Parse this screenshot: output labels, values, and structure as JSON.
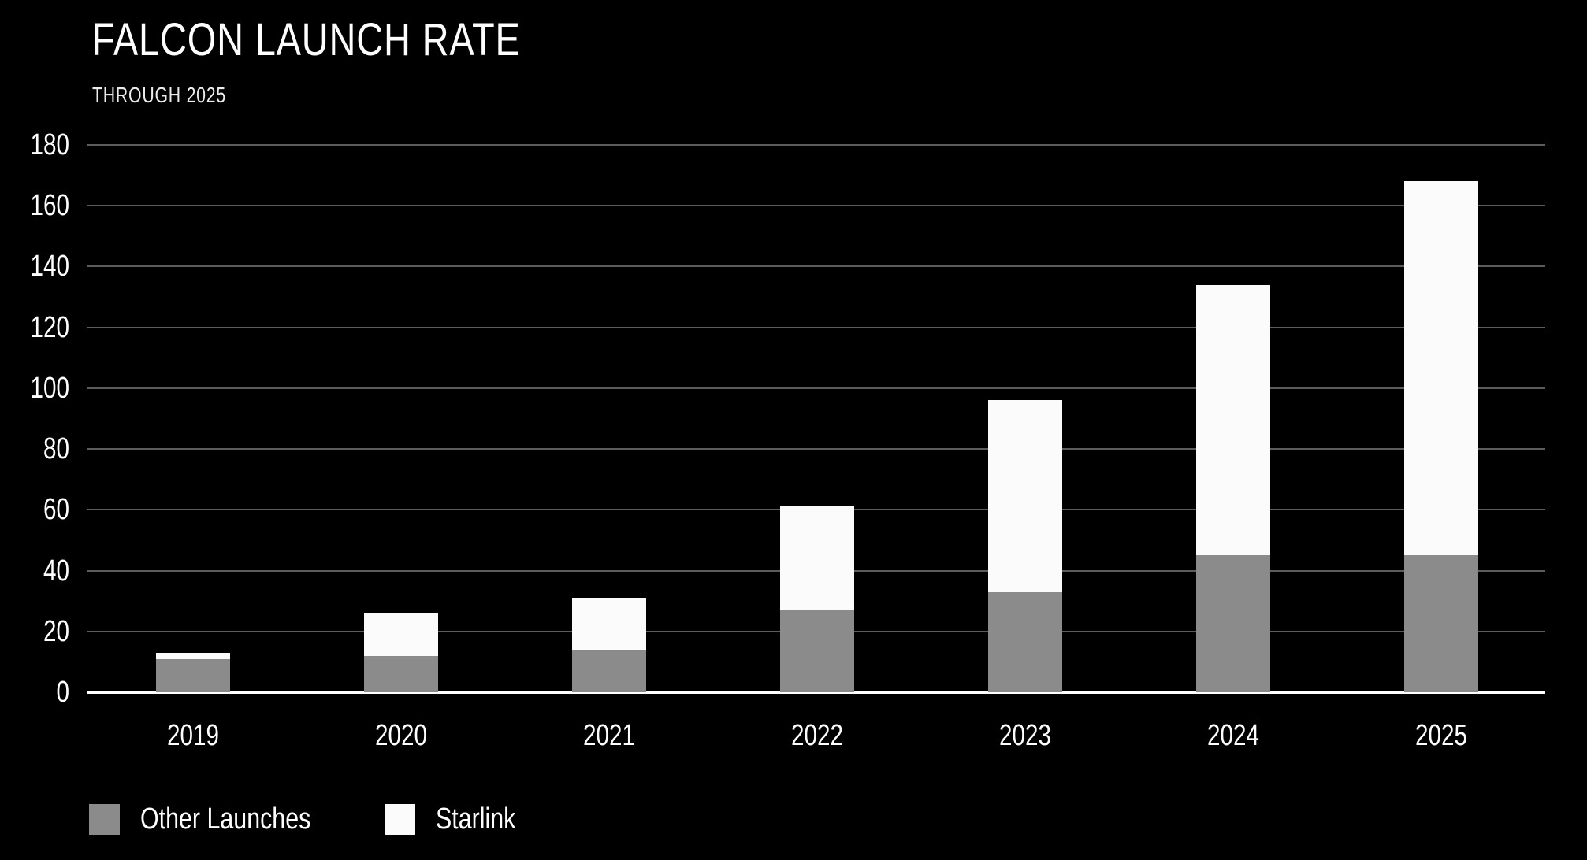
{
  "title": "FALCON LAUNCH RATE",
  "subtitle": "THROUGH 2025",
  "colors": {
    "background": "#000000",
    "bar_other": "#8b8b8b",
    "bar_starlink": "#fbfbfb",
    "gridline": "#5c5c5e",
    "baseline": "#ffffff",
    "text": "#ffffff"
  },
  "chart_data": {
    "type": "bar",
    "stacked": true,
    "title": "FALCON LAUNCH RATE",
    "subtitle": "THROUGH 2025",
    "categories": [
      "2019",
      "2020",
      "2021",
      "2022",
      "2023",
      "2024",
      "2025"
    ],
    "series": [
      {
        "name": "Other Launches",
        "color": "#8b8b8b",
        "values": [
          11,
          12,
          14,
          27,
          33,
          45,
          45
        ]
      },
      {
        "name": "Starlink",
        "color": "#fbfbfb",
        "values": [
          2,
          14,
          17,
          34,
          63,
          89,
          123
        ]
      }
    ],
    "totals": [
      13,
      26,
      31,
      61,
      96,
      134,
      168
    ],
    "xlabel": "",
    "ylabel": "",
    "ylim": [
      0,
      180
    ],
    "yticks": [
      0,
      20,
      40,
      60,
      80,
      100,
      120,
      140,
      160,
      180
    ],
    "grid": true,
    "legend_position": "bottom-left"
  },
  "legend": {
    "items": [
      {
        "label": "Other Launches",
        "color": "#8b8b8b"
      },
      {
        "label": "Starlink",
        "color": "#fbfbfb"
      }
    ]
  }
}
